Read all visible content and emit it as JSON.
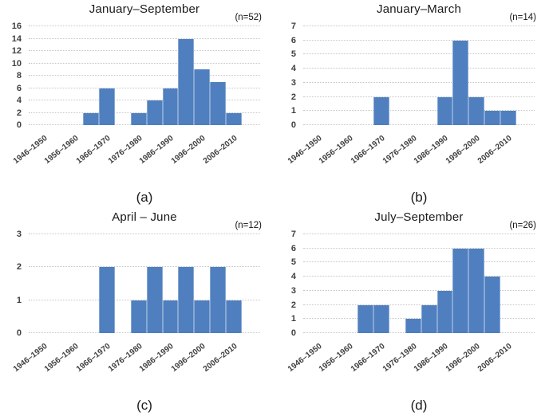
{
  "figure": {
    "background": "#ffffff",
    "layout": "2x2 grid of histograms",
    "x_bin_width_years": 5
  },
  "colors": {
    "bar_fill": "#4f7fbf",
    "bar_separator": "rgba(255,255,255,0.32)",
    "gridline": "#c6c6c6",
    "axis_tick_text": "#3f3f3f",
    "title_text": "#1a1a1a"
  },
  "chart_data": [
    {
      "type": "bar",
      "title": "January–September",
      "n_label": "(n=52)",
      "caption": "(a)",
      "categories": [
        "1946–1950",
        "1951–1955",
        "1956–1960",
        "1961–1965",
        "1966–1970",
        "1971–1975",
        "1976–1980",
        "1981–1985",
        "1986–1990",
        "1991–1995",
        "1996–2000",
        "2001–2005",
        "2006–2010"
      ],
      "x_tick_labels": [
        "1946–1950",
        "1956–1960",
        "1966–1970",
        "1976–1980",
        "1986–1990",
        "1996–2000",
        "2006–2010"
      ],
      "values": [
        0,
        0,
        0,
        2,
        6,
        0,
        2,
        4,
        6,
        14,
        9,
        7,
        2
      ],
      "ylim": [
        0,
        16
      ],
      "yticks": [
        0,
        2,
        4,
        6,
        8,
        10,
        12,
        14,
        16
      ],
      "grid": "horizontal dotted",
      "legend": "none"
    },
    {
      "type": "bar",
      "title": "January–March",
      "n_label": "(n=14)",
      "caption": "(b)",
      "categories": [
        "1946–1950",
        "1951–1955",
        "1956–1960",
        "1961–1965",
        "1966–1970",
        "1971–1975",
        "1976–1980",
        "1981–1985",
        "1986–1990",
        "1991–1995",
        "1996–2000",
        "2001–2005",
        "2006–2010"
      ],
      "x_tick_labels": [
        "1946–1950",
        "1956–1960",
        "1966–1970",
        "1976–1980",
        "1986–1990",
        "1996–2000",
        "2006–2010"
      ],
      "values": [
        0,
        0,
        0,
        0,
        2,
        0,
        0,
        0,
        2,
        6,
        2,
        1,
        1
      ],
      "ylim": [
        0,
        7
      ],
      "yticks": [
        0,
        1,
        2,
        3,
        4,
        5,
        6,
        7
      ],
      "grid": "horizontal dotted",
      "legend": "none"
    },
    {
      "type": "bar",
      "title": "April – June",
      "n_label": "(n=12)",
      "caption": "(c)",
      "categories": [
        "1946–1950",
        "1951–1955",
        "1956–1960",
        "1961–1965",
        "1966–1970",
        "1971–1975",
        "1976–1980",
        "1981–1985",
        "1986–1990",
        "1991–1995",
        "1996–2000",
        "2001–2005",
        "2006–2010"
      ],
      "x_tick_labels": [
        "1946–1950",
        "1956–1960",
        "1966–1970",
        "1976–1980",
        "1986–1990",
        "1996–2000",
        "2006–2010"
      ],
      "values": [
        0,
        0,
        0,
        0,
        2,
        0,
        1,
        2,
        1,
        2,
        1,
        2,
        1
      ],
      "ylim": [
        0,
        3
      ],
      "yticks": [
        0,
        1,
        2,
        3
      ],
      "grid": "horizontal dotted",
      "legend": "none"
    },
    {
      "type": "bar",
      "title": "July–September",
      "n_label": "(n=26)",
      "caption": "(d)",
      "categories": [
        "1946–1950",
        "1951–1955",
        "1956–1960",
        "1961–1965",
        "1966–1970",
        "1971–1975",
        "1976–1980",
        "1981–1985",
        "1986–1990",
        "1991–1995",
        "1996–2000",
        "2001–2005",
        "2006–2010"
      ],
      "x_tick_labels": [
        "1946–1950",
        "1956–1960",
        "1966–1970",
        "1976–1980",
        "1986–1990",
        "1996–2000",
        "2006–2010"
      ],
      "values": [
        0,
        0,
        0,
        2,
        2,
        0,
        1,
        2,
        3,
        6,
        6,
        4,
        0
      ],
      "ylim": [
        0,
        7
      ],
      "yticks": [
        0,
        1,
        2,
        3,
        4,
        5,
        6,
        7
      ],
      "grid": "horizontal dotted",
      "legend": "none"
    }
  ]
}
